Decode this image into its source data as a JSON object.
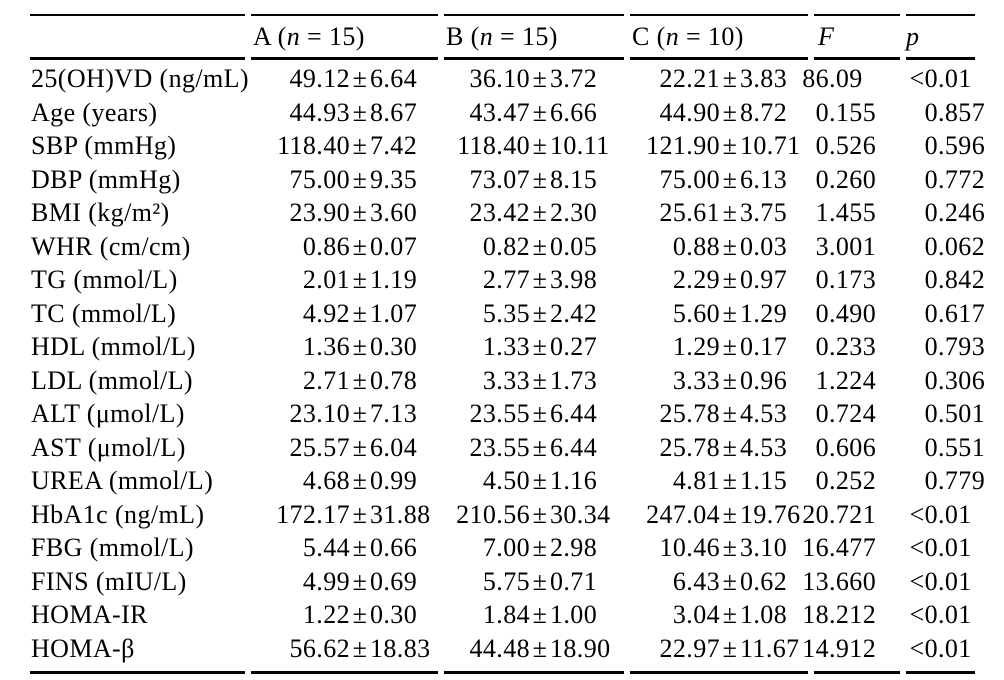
{
  "table": {
    "pm_symbol": "±",
    "columns": {
      "group_a": {
        "prefix": "A (",
        "var": "n",
        "suffix": " = 15)"
      },
      "group_b": {
        "prefix": "B (",
        "var": "n",
        "suffix": " = 15)"
      },
      "group_c": {
        "prefix": "C (",
        "var": "n",
        "suffix": " = 10)"
      },
      "f_label": "F",
      "p_label": "p"
    },
    "rows": [
      {
        "label": "25(OH)VD (ng/mL)",
        "a": {
          "mean": "49.12",
          "sd": "6.64"
        },
        "b": {
          "mean": "36.10",
          "sd": "3.72"
        },
        "c": {
          "mean": "22.21",
          "sd": "3.83"
        },
        "f": "86.09",
        "p": "<0.01"
      },
      {
        "label": "Age (years)",
        "a": {
          "mean": "44.93",
          "sd": "8.67"
        },
        "b": {
          "mean": "43.47",
          "sd": "6.66"
        },
        "c": {
          "mean": "44.90",
          "sd": "8.72"
        },
        "f": "0.155",
        "p": "0.857"
      },
      {
        "label": "SBP (mmHg)",
        "a": {
          "mean": "118.40",
          "sd": "7.42"
        },
        "b": {
          "mean": "118.40",
          "sd": "10.11"
        },
        "c": {
          "mean": "121.90",
          "sd": "10.71"
        },
        "f": "0.526",
        "p": "0.596"
      },
      {
        "label": "DBP (mmHg)",
        "a": {
          "mean": "75.00",
          "sd": "9.35"
        },
        "b": {
          "mean": "73.07",
          "sd": "8.15"
        },
        "c": {
          "mean": "75.00",
          "sd": "6.13"
        },
        "f": "0.260",
        "p": "0.772"
      },
      {
        "label": "BMI (kg/m²)",
        "a": {
          "mean": "23.90",
          "sd": "3.60"
        },
        "b": {
          "mean": "23.42",
          "sd": "2.30"
        },
        "c": {
          "mean": "25.61",
          "sd": "3.75"
        },
        "f": "1.455",
        "p": "0.246"
      },
      {
        "label": "WHR (cm/cm)",
        "a": {
          "mean": "0.86",
          "sd": "0.07"
        },
        "b": {
          "mean": "0.82",
          "sd": "0.05"
        },
        "c": {
          "mean": "0.88",
          "sd": "0.03"
        },
        "f": "3.001",
        "p": "0.062"
      },
      {
        "label": "TG (mmol/L)",
        "a": {
          "mean": "2.01",
          "sd": "1.19"
        },
        "b": {
          "mean": "2.77",
          "sd": "3.98"
        },
        "c": {
          "mean": "2.29",
          "sd": "0.97"
        },
        "f": "0.173",
        "p": "0.842"
      },
      {
        "label": "TC (mmol/L)",
        "a": {
          "mean": "4.92",
          "sd": "1.07"
        },
        "b": {
          "mean": "5.35",
          "sd": "2.42"
        },
        "c": {
          "mean": "5.60",
          "sd": "1.29"
        },
        "f": "0.490",
        "p": "0.617"
      },
      {
        "label": "HDL (mmol/L)",
        "a": {
          "mean": "1.36",
          "sd": "0.30"
        },
        "b": {
          "mean": "1.33",
          "sd": "0.27"
        },
        "c": {
          "mean": "1.29",
          "sd": "0.17"
        },
        "f": "0.233",
        "p": "0.793"
      },
      {
        "label": "LDL (mmol/L)",
        "a": {
          "mean": "2.71",
          "sd": "0.78"
        },
        "b": {
          "mean": "3.33",
          "sd": "1.73"
        },
        "c": {
          "mean": "3.33",
          "sd": "0.96"
        },
        "f": "1.224",
        "p": "0.306"
      },
      {
        "label": "ALT (μmol/L)",
        "a": {
          "mean": "23.10",
          "sd": "7.13"
        },
        "b": {
          "mean": "23.55",
          "sd": "6.44"
        },
        "c": {
          "mean": "25.78",
          "sd": "4.53"
        },
        "f": "0.724",
        "p": "0.501"
      },
      {
        "label": "AST (μmol/L)",
        "a": {
          "mean": "25.57",
          "sd": "6.04"
        },
        "b": {
          "mean": "23.55",
          "sd": "6.44"
        },
        "c": {
          "mean": "25.78",
          "sd": "4.53"
        },
        "f": "0.606",
        "p": "0.551"
      },
      {
        "label": "UREA (mmol/L)",
        "a": {
          "mean": "4.68",
          "sd": "0.99"
        },
        "b": {
          "mean": "4.50",
          "sd": "1.16"
        },
        "c": {
          "mean": "4.81",
          "sd": "1.15"
        },
        "f": "0.252",
        "p": "0.779"
      },
      {
        "label": "HbA1c (ng/mL)",
        "a": {
          "mean": "172.17",
          "sd": "31.88"
        },
        "b": {
          "mean": "210.56",
          "sd": "30.34"
        },
        "c": {
          "mean": "247.04",
          "sd": "19.76"
        },
        "f": "20.721",
        "p": "<0.01"
      },
      {
        "label": "FBG (mmol/L)",
        "a": {
          "mean": "5.44",
          "sd": "0.66"
        },
        "b": {
          "mean": "7.00",
          "sd": "2.98"
        },
        "c": {
          "mean": "10.46",
          "sd": "3.10"
        },
        "f": "16.477",
        "p": "<0.01"
      },
      {
        "label": "FINS (mIU/L)",
        "a": {
          "mean": "4.99",
          "sd": "0.69"
        },
        "b": {
          "mean": "5.75",
          "sd": "0.71"
        },
        "c": {
          "mean": "6.43",
          "sd": "0.62"
        },
        "f": "13.660",
        "p": "<0.01"
      },
      {
        "label": "HOMA-IR",
        "a": {
          "mean": "1.22",
          "sd": "0.30"
        },
        "b": {
          "mean": "1.84",
          "sd": "1.00"
        },
        "c": {
          "mean": "3.04",
          "sd": "1.08"
        },
        "f": "18.212",
        "p": "<0.01"
      },
      {
        "label": "HOMA-β",
        "a": {
          "mean": "56.62",
          "sd": "18.83"
        },
        "b": {
          "mean": "44.48",
          "sd": "18.90"
        },
        "c": {
          "mean": "22.97",
          "sd": "11.67"
        },
        "f": "14.912",
        "p": "<0.01"
      }
    ]
  }
}
